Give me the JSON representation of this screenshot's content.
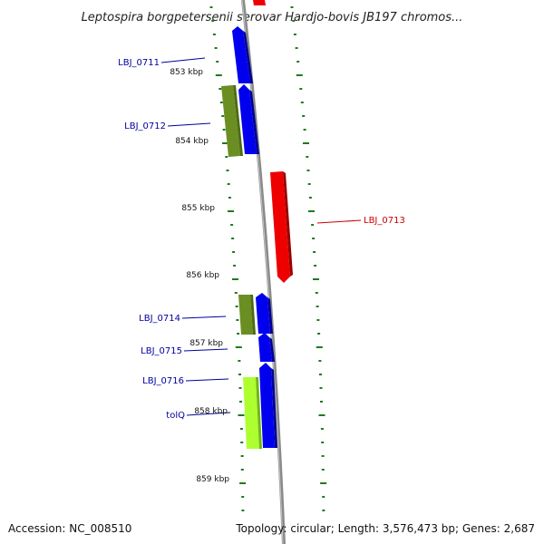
{
  "title": "Leptospira borgpetersenii serovar Hardjo-bovis JB197 chromos...",
  "footer": {
    "accession": "Accession: NC_008510",
    "topology": "Topology: circular; Length: 3,576,473 bp; Genes: 2,687"
  },
  "colors": {
    "backbone": "#8a8a8a",
    "tick": "#1f7a1f",
    "label_blue": "#0000a0",
    "label_red": "#cc0000",
    "gene_blue": "#0000ee",
    "gene_red": "#ee0000",
    "gene_olive": "#6b8e23",
    "gene_lime": "#adff2f"
  },
  "kbp_labels": [
    {
      "id": "853",
      "text": "853 kbp"
    },
    {
      "id": "854",
      "text": "854 kbp"
    },
    {
      "id": "855",
      "text": "855 kbp"
    },
    {
      "id": "856",
      "text": "856 kbp"
    },
    {
      "id": "857",
      "text": "857 kbp"
    },
    {
      "id": "858",
      "text": "858 kbp"
    },
    {
      "id": "859",
      "text": "859 kbp"
    }
  ],
  "genes": [
    {
      "id": "LBJ_0711",
      "label": "LBJ_0711",
      "color": "blue"
    },
    {
      "id": "LBJ_0712",
      "label": "LBJ_0712",
      "color": "blue"
    },
    {
      "id": "LBJ_0713",
      "label": "LBJ_0713",
      "color": "red"
    },
    {
      "id": "LBJ_0714",
      "label": "LBJ_0714",
      "color": "blue"
    },
    {
      "id": "LBJ_0715",
      "label": "LBJ_0715",
      "color": "blue"
    },
    {
      "id": "LBJ_0716",
      "label": "LBJ_0716",
      "color": "blue"
    },
    {
      "id": "tolQ",
      "label": "tolQ",
      "color": "blue"
    }
  ]
}
